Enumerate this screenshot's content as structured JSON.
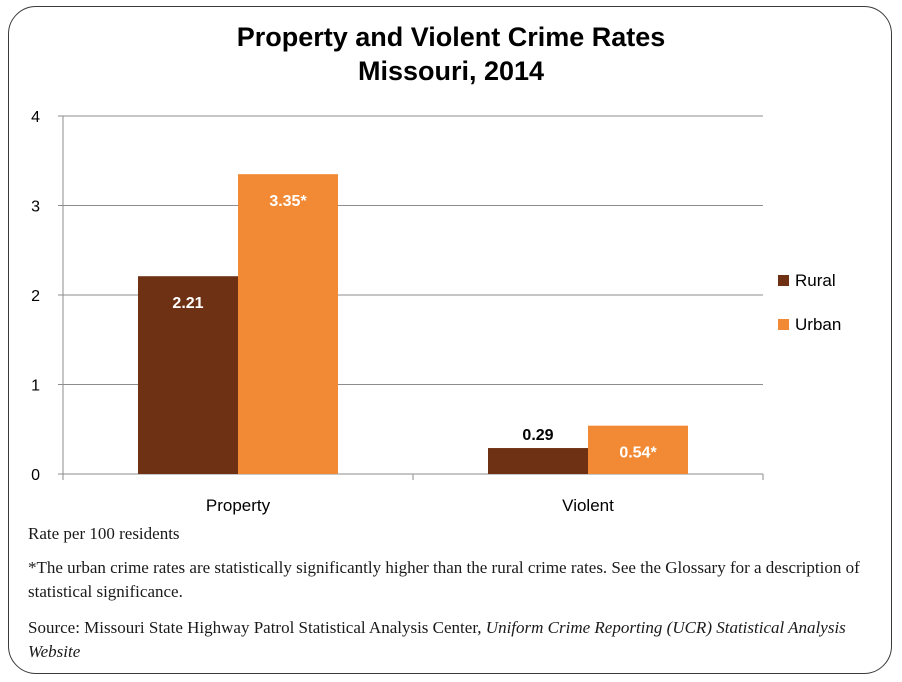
{
  "chart_data": {
    "type": "bar",
    "title": "Property and Violent Crime Rates",
    "subtitle": "Missouri, 2014",
    "categories": [
      "Property",
      "Violent"
    ],
    "series": [
      {
        "name": "Rural",
        "values": [
          2.21,
          0.29
        ],
        "labels": [
          "2.21",
          "0.29"
        ],
        "color": "#6e3114"
      },
      {
        "name": "Urban",
        "values": [
          3.35,
          0.54
        ],
        "labels": [
          "3.35*",
          "0.54*"
        ],
        "color": "#f28a35"
      }
    ],
    "ylim": [
      0,
      4
    ],
    "yticks": [
      "0",
      "1",
      "2",
      "3",
      "4"
    ],
    "grid": true,
    "legend_position": "right"
  },
  "notes": {
    "units": "Rate per 100 residents",
    "significance": "*The urban crime rates are statistically significantly higher than the rural crime rates. See the Glossary for a description of statistical significance.",
    "source_prefix": "Source:  Missouri State Highway Patrol Statistical Analysis Center, ",
    "source_italic": "Uniform Crime Reporting (UCR) Statistical Analysis Website"
  },
  "colors": {
    "grid": "#8c8c8c",
    "text": "#000000",
    "frame": "#3a3a3a"
  }
}
